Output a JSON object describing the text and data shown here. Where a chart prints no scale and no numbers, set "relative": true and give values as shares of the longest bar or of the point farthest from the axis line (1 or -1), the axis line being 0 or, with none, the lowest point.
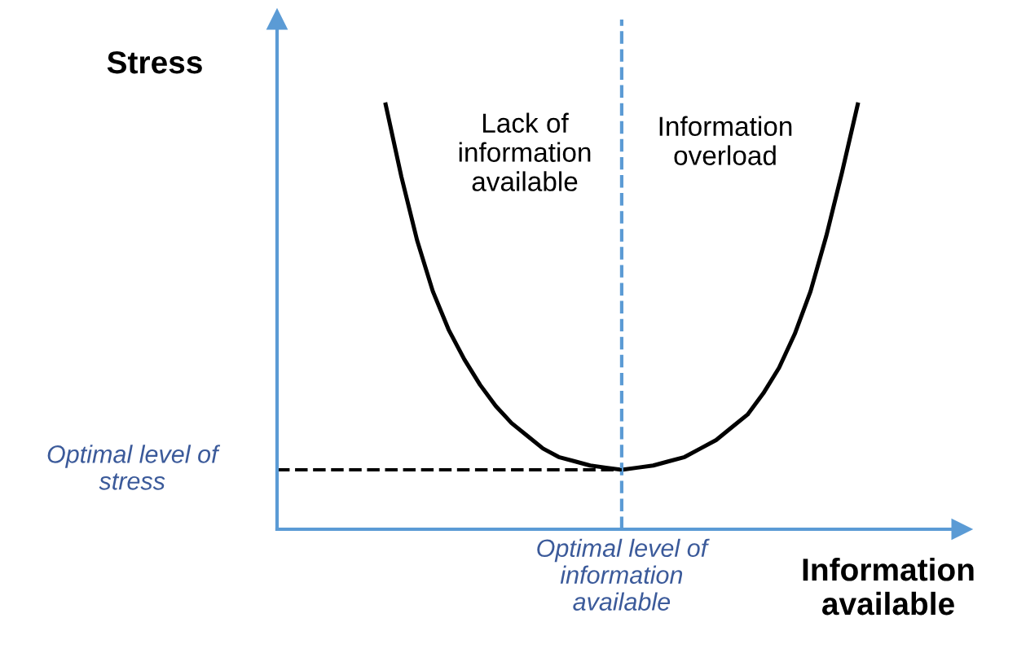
{
  "chart_data": {
    "type": "line",
    "relative": true,
    "xlabel": "Information\navailable",
    "categories": [
      null,
      null,
      null,
      null,
      null,
      null,
      null,
      null,
      null,
      null,
      null,
      null,
      null,
      null,
      null,
      null,
      null,
      null,
      null,
      null,
      null,
      null,
      null,
      null,
      null,
      null,
      null,
      null,
      null,
      null,
      null
    ],
    "series": [
      {
        "color": "#000000",
        "values": [
          1.0,
          0.83,
          0.68,
          0.56,
          0.47,
          0.4,
          0.34,
          0.29,
          0.25,
          0.22,
          0.19,
          0.17,
          0.16,
          0.15,
          0.145,
          0.14,
          0.145,
          0.15,
          0.16,
          0.17,
          0.19,
          0.21,
          0.24,
          0.27,
          0.32,
          0.38,
          0.46,
          0.56,
          0.69,
          0.84,
          1.0
        ]
      }
    ],
    "ref_lines": [
      {
        "axis": "y",
        "value": 0.14,
        "label": "Optimal level of\nstress",
        "color": "#000000",
        "line_style": "dashed"
      }
    ],
    "annotations": [
      "Lack of\ninformation\navailable",
      "Information\noverload",
      "Stress",
      "Optimal level of\ninformation\navailable"
    ],
    "marker": "none",
    "line_style": "solid"
  }
}
